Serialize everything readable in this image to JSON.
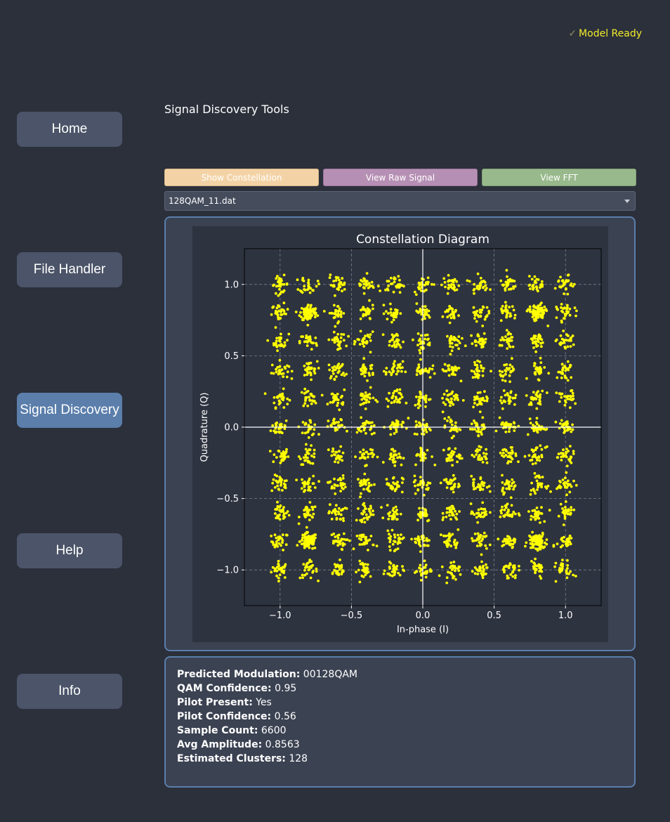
{
  "status": {
    "text": "Model Ready",
    "icon": "check-icon"
  },
  "nav": {
    "items": [
      {
        "label": "Home",
        "active": false
      },
      {
        "label": "File Handler",
        "active": false
      },
      {
        "label": "Signal Discovery",
        "active": true
      },
      {
        "label": "Help",
        "active": false
      },
      {
        "label": "Info",
        "active": false
      }
    ]
  },
  "page": {
    "title": "Signal Discovery Tools"
  },
  "tools": {
    "show_constellation": "Show Constellation",
    "view_raw": "View Raw Signal",
    "view_fft": "View FFT"
  },
  "file_select": {
    "value": "128QAM_11.dat"
  },
  "colors": {
    "background": "#2b303b",
    "panel": "#3b4252",
    "accent": "#5b7eab",
    "points": "#ffff00",
    "status": "#f2ea2b"
  },
  "chart_data": {
    "type": "scatter",
    "title": "Constellation Diagram",
    "xlabel": "In-phase (I)",
    "ylabel": "Quadrature (Q)",
    "xlim": [
      -1.25,
      1.25
    ],
    "ylim": [
      -1.25,
      1.25
    ],
    "xticks": [
      -1.0,
      -0.5,
      0.0,
      0.5,
      1.0
    ],
    "yticks": [
      -1.0,
      -0.5,
      0.0,
      0.5,
      1.0
    ],
    "xtick_labels": [
      "−1.0",
      "−0.5",
      "0.0",
      "0.5",
      "1.0"
    ],
    "ytick_labels": [
      "−1.0",
      "−0.5",
      "0.0",
      "0.5",
      "1.0"
    ],
    "grid": true,
    "series": [
      {
        "cluster_centers": {
          "x": [
            -1.0,
            -0.8,
            -0.6,
            -0.4,
            -0.2,
            0.0,
            0.2,
            0.4,
            0.6,
            0.8,
            1.0
          ],
          "y": [
            -1.0,
            -0.8,
            -0.6,
            -0.4,
            -0.2,
            0.0,
            0.2,
            0.4,
            0.6,
            0.8,
            1.0
          ]
        },
        "dense_clusters": [
          [
            -0.8,
            0.8
          ],
          [
            0.8,
            0.8
          ],
          [
            -0.8,
            -0.8
          ],
          [
            0.8,
            -0.8
          ]
        ],
        "points_per_cluster": 28,
        "spread": 0.03
      }
    ]
  },
  "info": {
    "rows": [
      {
        "label": "Predicted Modulation:",
        "value": "00128QAM"
      },
      {
        "label": "QAM Confidence:",
        "value": "0.95"
      },
      {
        "label": "Pilot Present:",
        "value": "Yes"
      },
      {
        "label": "Pilot Confidence:",
        "value": "0.56"
      },
      {
        "label": "Sample Count:",
        "value": "6600"
      },
      {
        "label": "Avg Amplitude:",
        "value": "0.8563"
      },
      {
        "label": "Estimated Clusters:",
        "value": "128"
      }
    ]
  }
}
